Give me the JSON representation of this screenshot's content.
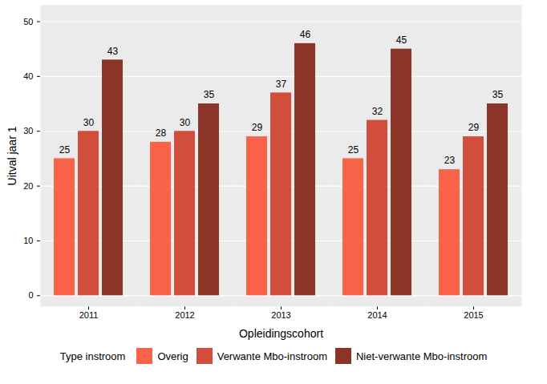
{
  "chart_data": {
    "type": "bar",
    "x_label": "Opleidingscohort",
    "y_label": "Uitval jaar 1",
    "legend_title": "Type instroom",
    "legend": "bottom",
    "categories": [
      "2011",
      "2012",
      "2013",
      "2014",
      "2015"
    ],
    "series": [
      {
        "name": "Overig",
        "color": "#F8634A",
        "values": [
          25,
          28,
          29,
          25,
          23
        ]
      },
      {
        "name": "Verwante Mbo-instroom",
        "color": "#D14E3C",
        "values": [
          30,
          30,
          37,
          32,
          29
        ]
      },
      {
        "name": "Niet-verwante Mbo-instroom",
        "color": "#8B3528",
        "values": [
          43,
          35,
          46,
          45,
          35
        ]
      }
    ],
    "ylim": [
      -2,
      53
    ],
    "yticks": [
      0,
      10,
      20,
      30,
      40,
      50
    ],
    "grid": true,
    "data_labels": true
  }
}
